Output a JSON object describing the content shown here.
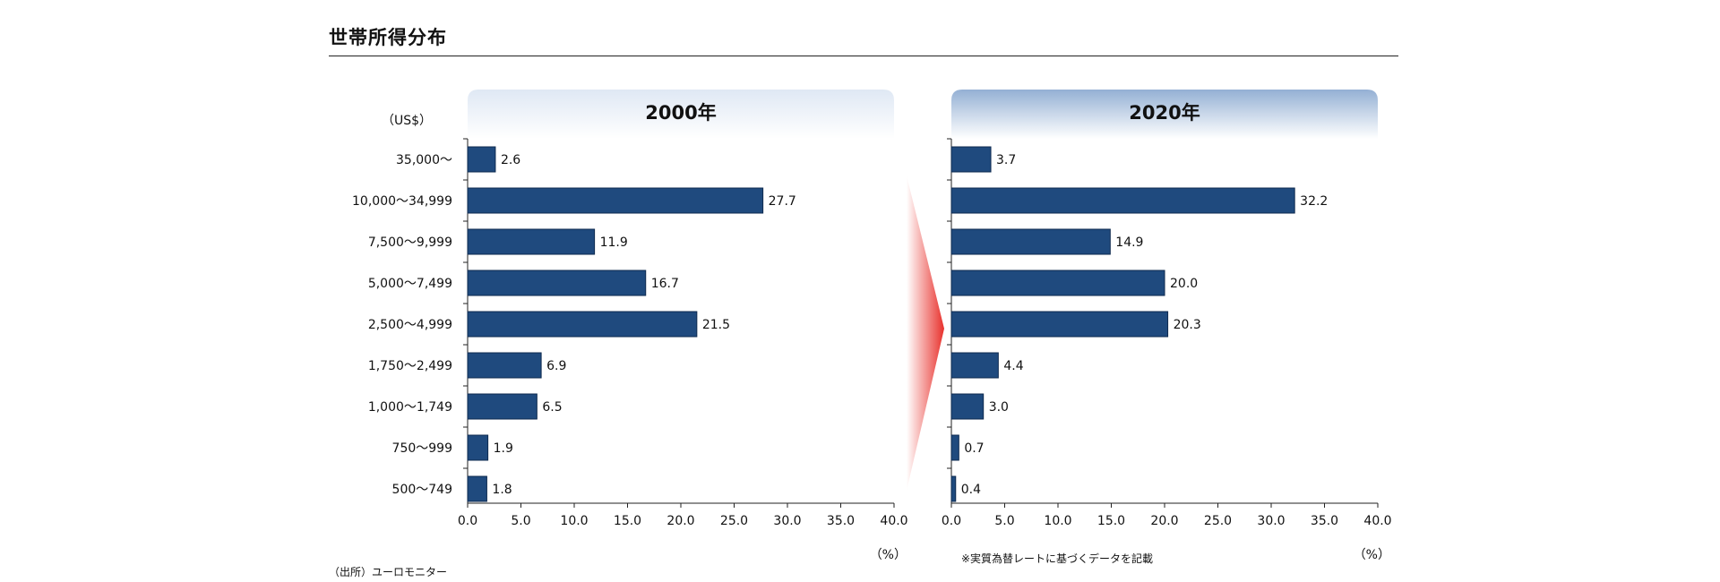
{
  "page": {
    "title": "世帯所得分布",
    "source": "（出所）ユーロモニター",
    "footnote": "※実質為替レートに基づくデータを記載"
  },
  "colors": {
    "bar_fill": "#1f4a7e",
    "bar_stroke": "#0e2a4f",
    "header_left_top": "#dfe8f4",
    "header_right_top": "#94b0d4",
    "arrow": "#e8312c"
  },
  "chart_data": [
    {
      "type": "bar",
      "orientation": "horizontal",
      "title": "2000年",
      "unit_label": "（US$）",
      "xunit": "（%）",
      "xlim": [
        0,
        40
      ],
      "xticks": [
        "0.0",
        "5.0",
        "10.0",
        "15.0",
        "20.0",
        "25.0",
        "30.0",
        "35.0",
        "40.0"
      ],
      "categories": [
        "35,000～",
        "10,000～34,999",
        "7,500～9,999",
        "5,000～7,499",
        "2,500～4,999",
        "1,750～2,499",
        "1,000～1,749",
        "750～999",
        "500～749"
      ],
      "values": [
        2.6,
        27.7,
        11.9,
        16.7,
        21.5,
        6.9,
        6.5,
        1.9,
        1.8
      ],
      "value_labels": [
        "2.6",
        "27.7",
        "11.9",
        "16.7",
        "21.5",
        "6.9",
        "6.5",
        "1.9",
        "1.8"
      ]
    },
    {
      "type": "bar",
      "orientation": "horizontal",
      "title": "2020年",
      "xunit": "（%）",
      "xlim": [
        0,
        40
      ],
      "xticks": [
        "0.0",
        "5.0",
        "10.0",
        "15.0",
        "20.0",
        "25.0",
        "30.0",
        "35.0",
        "40.0"
      ],
      "categories": [
        "35,000～",
        "10,000～34,999",
        "7,500～9,999",
        "5,000～7,499",
        "2,500～4,999",
        "1,750～2,499",
        "1,000～1,749",
        "750～999",
        "500～749"
      ],
      "values": [
        3.7,
        32.2,
        14.9,
        20.0,
        20.3,
        4.4,
        3.0,
        0.7,
        0.4
      ],
      "value_labels": [
        "3.7",
        "32.2",
        "14.9",
        "20.0",
        "20.3",
        "4.4",
        "3.0",
        "0.7",
        "0.4"
      ]
    }
  ]
}
